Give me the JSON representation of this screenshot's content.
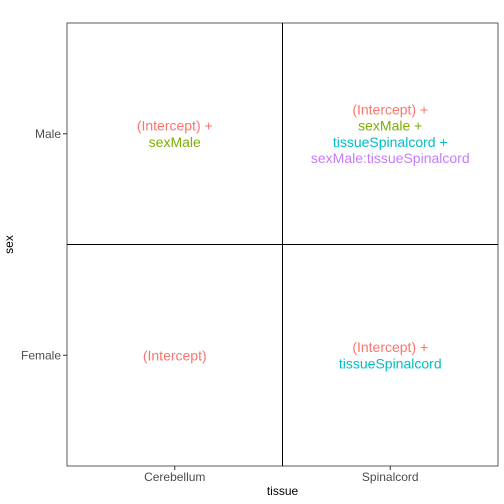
{
  "chart_data": {
    "type": "table",
    "xlabel": "tissue",
    "ylabel": "sex",
    "x_categories": [
      "Cerebellum",
      "Spinalcord"
    ],
    "y_categories": [
      "Female",
      "Male"
    ],
    "colors": {
      "(Intercept)": "#f8766d",
      "sexMale": "#7cae00",
      "tissueSpinalcord": "#00bfc4",
      "sexMale:tissueSpinalcord": "#c77cff"
    },
    "cells": [
      {
        "x": "Cerebellum",
        "y": "Male",
        "lines": [
          {
            "term": "(Intercept)",
            "text": "(Intercept) +"
          },
          {
            "term": "sexMale",
            "text": "sexMale"
          }
        ]
      },
      {
        "x": "Spinalcord",
        "y": "Male",
        "lines": [
          {
            "term": "(Intercept)",
            "text": "(Intercept) +"
          },
          {
            "term": "sexMale",
            "text": "sexMale +"
          },
          {
            "term": "tissueSpinalcord",
            "text": "tissueSpinalcord +"
          },
          {
            "term": "sexMale:tissueSpinalcord",
            "text": "sexMale:tissueSpinalcord"
          }
        ]
      },
      {
        "x": "Cerebellum",
        "y": "Female",
        "lines": [
          {
            "term": "(Intercept)",
            "text": "(Intercept)"
          }
        ]
      },
      {
        "x": "Spinalcord",
        "y": "Female",
        "lines": [
          {
            "term": "(Intercept)",
            "text": "(Intercept) +"
          },
          {
            "term": "tissueSpinalcord",
            "text": "tissueSpinalcord"
          }
        ]
      }
    ],
    "grid": false
  }
}
